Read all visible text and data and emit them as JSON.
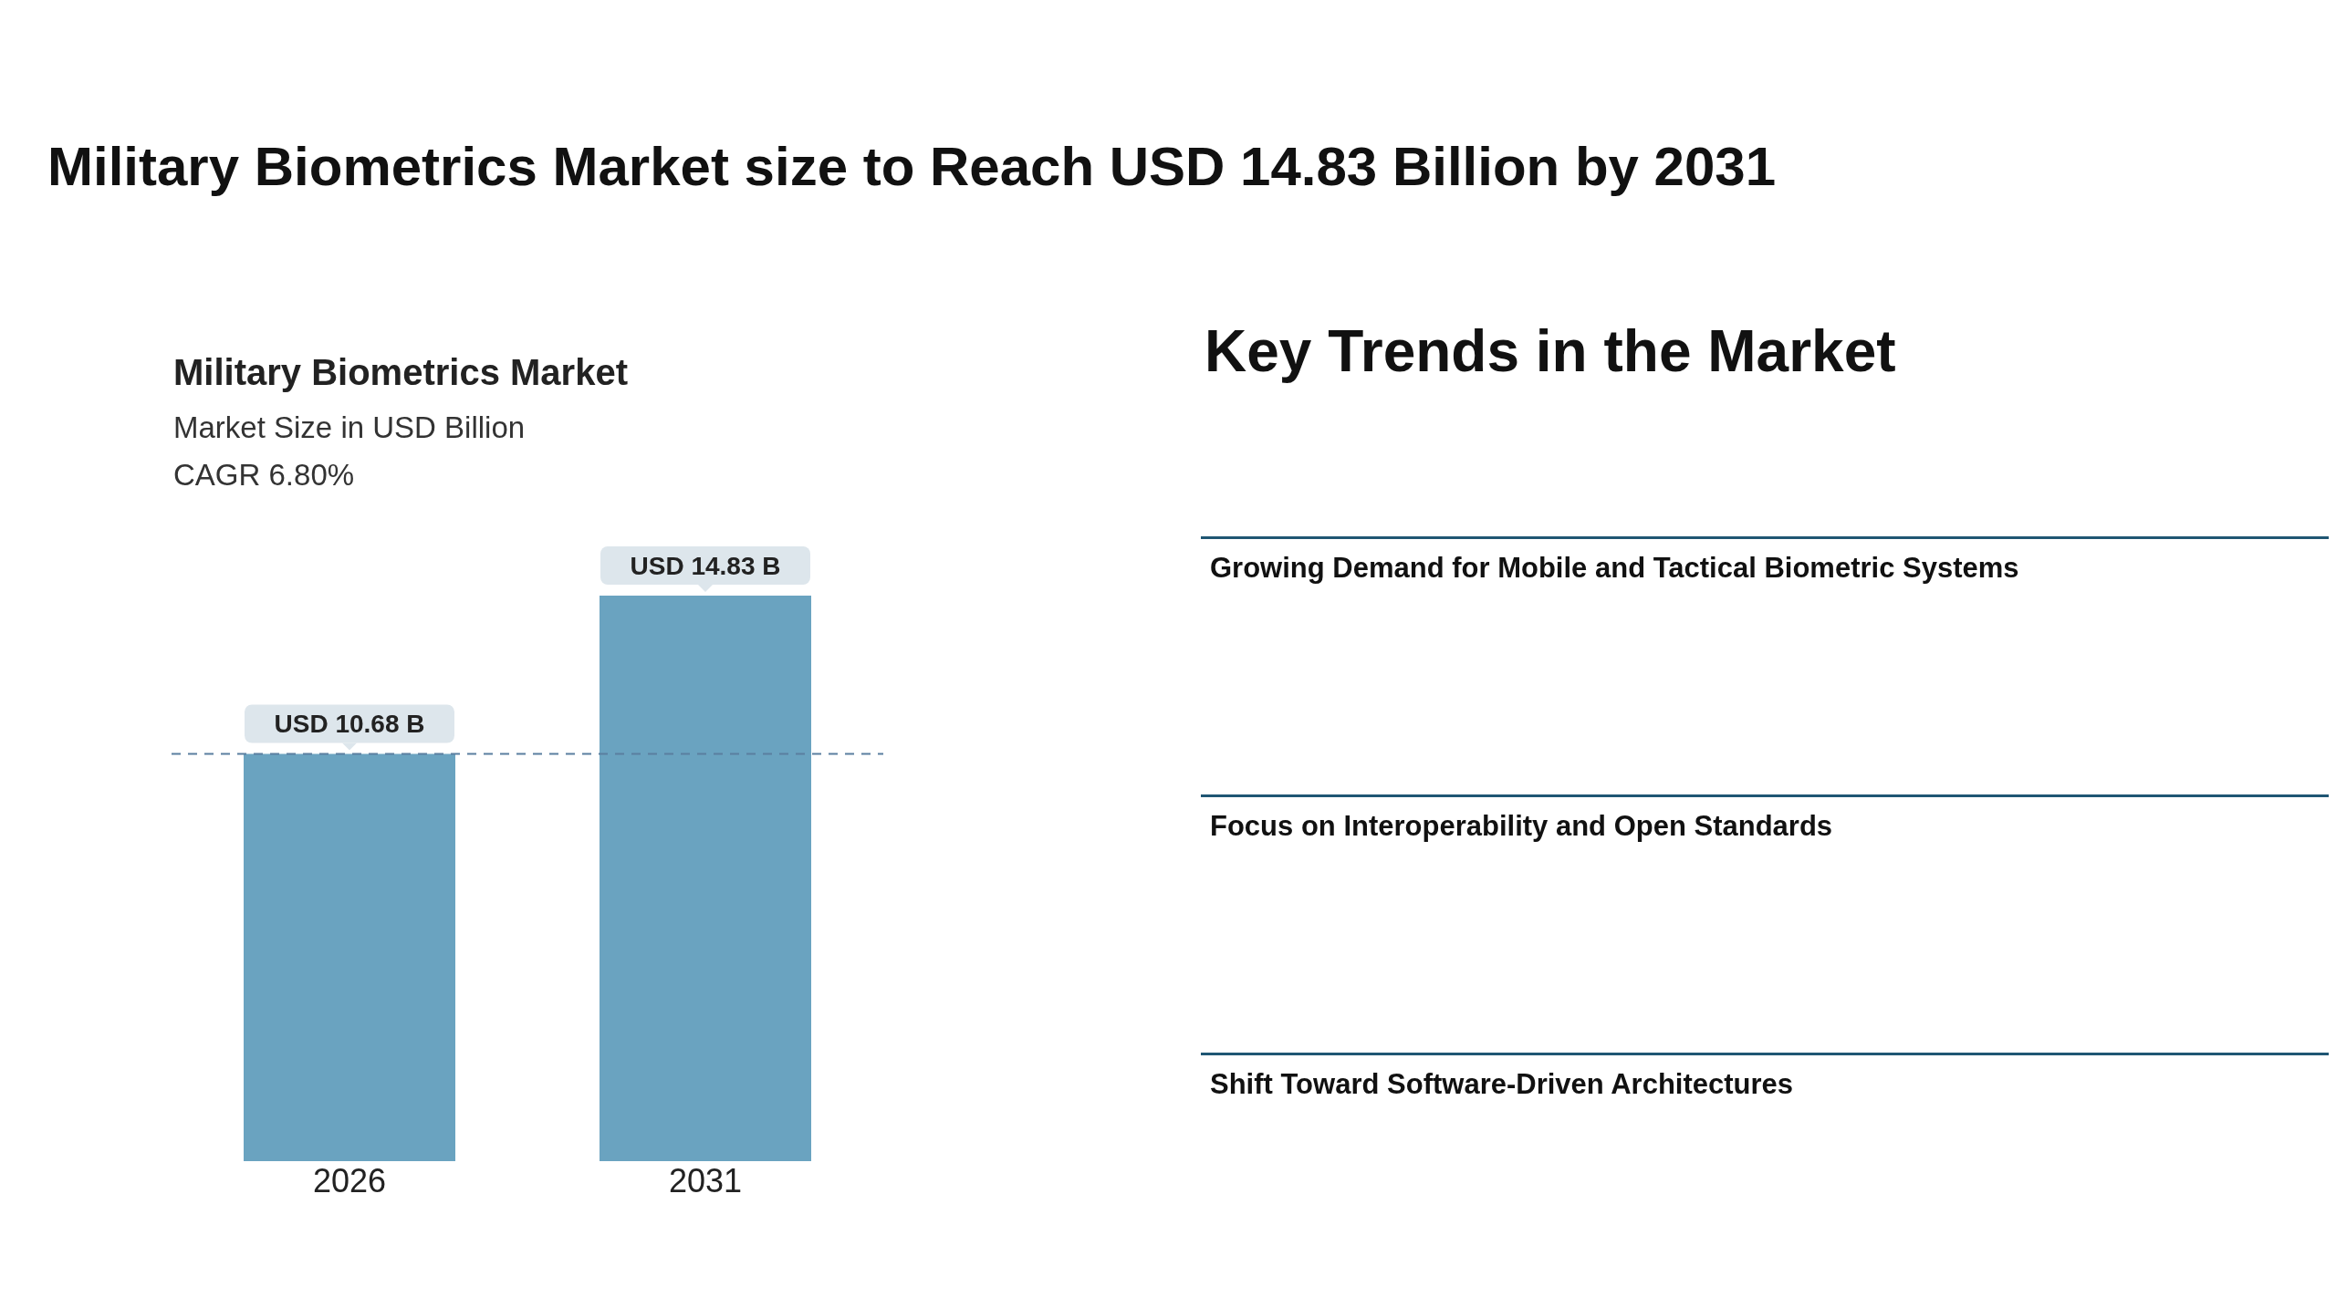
{
  "chart_data": [
    {
      "type": "bar",
      "title": "Military Biometrics Market size to Reach USD 14.83 Billion by 2031",
      "subtitle": "Military Biometrics Market",
      "ylabel": "Market Size in USD Billion",
      "annotations": [
        "CAGR 6.80%"
      ],
      "categories": [
        "2026",
        "2031"
      ],
      "values": [
        10.68,
        14.83
      ],
      "color": "#6aa3c0",
      "value_labels": [
        "USD 10.68 B",
        "USD 14.83 B"
      ],
      "ref_lines": [
        {
          "axis": "y",
          "value": 10.68,
          "color": "#5a7fa0",
          "line_style": "dashed"
        }
      ]
    },
    {
      "type": "other",
      "title": "Key Trends in the Market",
      "annotations": [
        "Growing Demand for Mobile and Tactical Biometric Systems",
        "Focus on Interoperability and Open Standards",
        "Shift Toward Software-Driven Architectures"
      ]
    }
  ]
}
